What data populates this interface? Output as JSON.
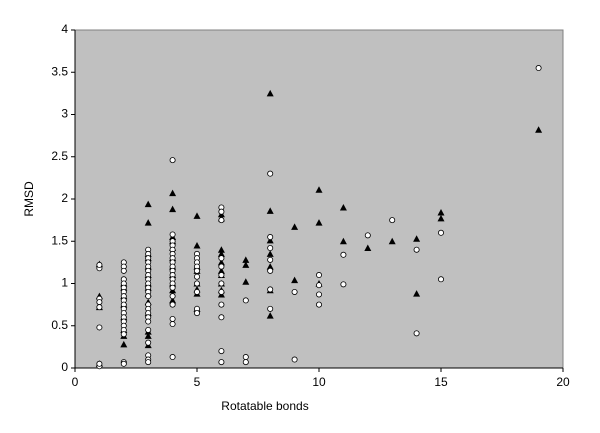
{
  "chart_data": {
    "type": "scatter",
    "x_label": "Rotatable bonds",
    "y_label": "RMSD",
    "xlim": [
      0,
      20
    ],
    "xticks": [
      0,
      5,
      10,
      15,
      20
    ],
    "ylim": [
      0,
      4
    ],
    "yticks": [
      0,
      0.5,
      1,
      1.5,
      2,
      2.5,
      3,
      3.5,
      4
    ],
    "background": "#c0c0c0",
    "grid": false,
    "series": [
      {
        "marker": "triangle",
        "color": "#000000",
        "x": [
          1,
          1,
          1,
          1,
          2,
          2,
          2,
          2,
          2,
          2,
          2,
          2,
          3,
          3,
          3,
          3,
          3,
          3,
          3,
          3,
          3,
          3,
          3,
          3,
          3,
          3,
          4,
          4,
          4,
          4,
          4,
          4,
          4,
          4,
          4,
          4,
          4,
          5,
          5,
          5,
          5,
          5,
          5,
          5,
          5,
          6,
          6,
          6,
          6,
          6,
          6,
          6,
          6,
          6,
          6,
          7,
          7,
          7,
          8,
          8,
          8,
          8,
          8,
          8,
          8,
          9,
          9,
          10,
          10,
          10,
          11,
          11,
          12,
          13,
          14,
          14,
          15,
          15,
          19
        ],
        "values": [
          1.23,
          0.85,
          0.72,
          0.05,
          1.0,
          0.95,
          0.85,
          0.75,
          0.6,
          0.45,
          0.38,
          0.28,
          1.94,
          1.72,
          1.35,
          1.3,
          1.2,
          1.1,
          1.0,
          0.95,
          0.88,
          0.78,
          0.65,
          0.43,
          0.38,
          0.27,
          2.07,
          1.88,
          1.55,
          1.5,
          1.42,
          1.3,
          1.2,
          1.1,
          1.0,
          0.92,
          0.8,
          1.8,
          1.45,
          1.2,
          1.15,
          1.0,
          0.93,
          0.88,
          0.7,
          1.82,
          1.77,
          1.4,
          1.35,
          1.25,
          1.15,
          1.1,
          1.0,
          0.92,
          0.87,
          1.28,
          1.22,
          1.02,
          3.25,
          1.86,
          1.51,
          1.35,
          1.2,
          0.92,
          0.62,
          1.67,
          1.04,
          2.11,
          1.72,
          1.0,
          1.9,
          1.5,
          1.42,
          1.5,
          1.53,
          0.88,
          1.84,
          1.77,
          2.82
        ]
      },
      {
        "marker": "circle",
        "color": "#ffffff",
        "x": [
          1,
          1,
          1,
          1,
          1,
          1,
          1,
          1,
          2,
          2,
          2,
          2,
          2,
          2,
          2,
          2,
          2,
          2,
          2,
          2,
          2,
          2,
          2,
          2,
          2,
          2,
          2,
          3,
          3,
          3,
          3,
          3,
          3,
          3,
          3,
          3,
          3,
          3,
          3,
          3,
          3,
          3,
          3,
          3,
          3,
          3,
          3,
          3,
          3,
          4,
          4,
          4,
          4,
          4,
          4,
          4,
          4,
          4,
          4,
          4,
          4,
          4,
          4,
          4,
          4,
          4,
          4,
          4,
          5,
          5,
          5,
          5,
          5,
          5,
          5,
          5,
          5,
          5,
          6,
          6,
          6,
          6,
          6,
          6,
          6,
          6,
          6,
          6,
          6,
          6,
          7,
          7,
          7,
          8,
          8,
          8,
          8,
          8,
          8,
          8,
          9,
          9,
          10,
          10,
          10,
          10,
          11,
          11,
          12,
          13,
          14,
          14,
          15,
          15,
          19
        ],
        "values": [
          1.18,
          1.22,
          0.82,
          0.78,
          0.72,
          0.48,
          0.02,
          0.05,
          1.25,
          1.2,
          1.15,
          1.05,
          1.0,
          0.95,
          0.9,
          0.85,
          0.8,
          0.75,
          0.7,
          0.65,
          0.6,
          0.55,
          0.5,
          0.45,
          0.4,
          0.07,
          0.05,
          1.4,
          1.35,
          1.3,
          1.25,
          1.2,
          1.15,
          1.1,
          1.05,
          1.0,
          0.95,
          0.9,
          0.85,
          0.75,
          0.7,
          0.65,
          0.6,
          0.55,
          0.45,
          0.3,
          0.15,
          0.1,
          0.07,
          2.46,
          1.58,
          1.5,
          1.45,
          1.4,
          1.35,
          1.3,
          1.25,
          1.2,
          1.15,
          1.1,
          1.05,
          1.0,
          0.95,
          0.85,
          0.75,
          0.58,
          0.52,
          0.13,
          1.35,
          1.3,
          1.25,
          1.2,
          1.15,
          1.08,
          1.0,
          0.9,
          0.7,
          0.65,
          1.9,
          1.85,
          1.75,
          1.3,
          1.2,
          1.1,
          1.0,
          0.9,
          0.75,
          0.6,
          0.2,
          0.07,
          0.8,
          0.13,
          0.07,
          2.3,
          1.55,
          1.42,
          1.28,
          1.15,
          0.93,
          0.7,
          0.9,
          0.1,
          1.1,
          0.98,
          0.87,
          0.75,
          1.34,
          0.99,
          1.57,
          1.75,
          1.4,
          0.41,
          1.6,
          1.05,
          3.55
        ]
      }
    ]
  }
}
